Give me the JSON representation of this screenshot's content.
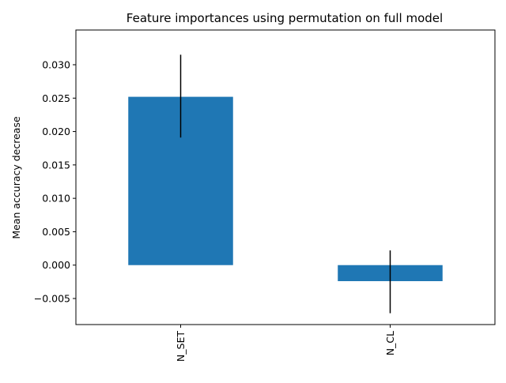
{
  "chart_data": {
    "type": "bar",
    "title": "Feature importances using permutation on full model",
    "xlabel": "",
    "ylabel": "Mean accuracy decrease",
    "categories": [
      "N_SET",
      "N_CL"
    ],
    "values": [
      0.0252,
      -0.0024
    ],
    "error_bars": [
      {
        "low": 0.0191,
        "high": 0.0315
      },
      {
        "low": -0.0072,
        "high": 0.0022
      }
    ],
    "ylim": [
      -0.0089,
      0.0352
    ],
    "yticks": [
      -0.005,
      0.0,
      0.005,
      0.01,
      0.015,
      0.02,
      0.025,
      0.03
    ],
    "ytick_labels": [
      "−0.005",
      "0.000",
      "0.005",
      "0.010",
      "0.015",
      "0.020",
      "0.025",
      "0.030"
    ],
    "grid": false,
    "colors": {
      "bar": "#1f77b4",
      "error": "#000000",
      "axis": "#000000"
    }
  }
}
